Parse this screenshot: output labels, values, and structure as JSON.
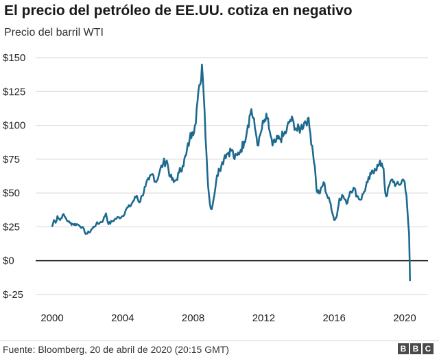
{
  "header": {
    "title": "El precio del petróleo de EE.UU. cotiza en negativo",
    "subtitle": "Precio del barril WTI"
  },
  "footer": {
    "source": "Fuente: Bloomberg, 20 de abril de 2020 (20:15 GMT)",
    "logo": [
      "B",
      "B",
      "C"
    ]
  },
  "colors": {
    "line": "#1d6a8f",
    "grid": "#d6d6d6",
    "zero_line": "#222222"
  },
  "chart_data": {
    "type": "line",
    "title": "El precio del petróleo de EE.UU. cotiza en negativo",
    "subtitle": "Precio del barril WTI",
    "xlabel": "",
    "ylabel": "",
    "xlim": [
      2000,
      2020.6
    ],
    "ylim": [
      -25,
      150
    ],
    "x_ticks": [
      2000,
      2004,
      2008,
      2012,
      2016,
      2020
    ],
    "x_tick_labels": [
      "2000",
      "2004",
      "2008",
      "2012",
      "2016",
      "2020"
    ],
    "y_ticks": [
      -25,
      0,
      25,
      50,
      75,
      100,
      125,
      150
    ],
    "y_tick_labels": [
      "$-25",
      "$0",
      "$25",
      "$50",
      "$75",
      "$100",
      "$125",
      "$150"
    ],
    "grid": true,
    "legend": "none",
    "series": [
      {
        "x": [
          2000.0,
          2000.1,
          2000.2,
          2000.3,
          2000.45,
          2000.6,
          2000.75,
          2000.9,
          2001.0,
          2001.2,
          2001.4,
          2001.55,
          2001.7,
          2001.85,
          2002.0,
          2002.1,
          2002.3,
          2002.5,
          2002.7,
          2002.9,
          2003.05,
          2003.2,
          2003.4,
          2003.6,
          2003.8,
          2004.0,
          2004.2,
          2004.4,
          2004.6,
          2004.8,
          2004.95,
          2005.1,
          2005.3,
          2005.5,
          2005.7,
          2005.9,
          2006.1,
          2006.3,
          2006.5,
          2006.7,
          2006.9,
          2007.05,
          2007.2,
          2007.4,
          2007.6,
          2007.8,
          2007.95,
          2008.1,
          2008.25,
          2008.4,
          2008.5,
          2008.55,
          2008.65,
          2008.75,
          2008.85,
          2008.95,
          2009.05,
          2009.15,
          2009.3,
          2009.45,
          2009.6,
          2009.8,
          2010.0,
          2010.2,
          2010.35,
          2010.5,
          2010.7,
          2010.9,
          2011.1,
          2011.3,
          2011.5,
          2011.7,
          2011.85,
          2012.0,
          2012.2,
          2012.4,
          2012.5,
          2012.7,
          2012.9,
          2013.1,
          2013.3,
          2013.5,
          2013.7,
          2013.9,
          2014.1,
          2014.3,
          2014.5,
          2014.6,
          2014.75,
          2014.9,
          2015.0,
          2015.2,
          2015.4,
          2015.6,
          2015.8,
          2016.0,
          2016.15,
          2016.3,
          2016.5,
          2016.7,
          2016.9,
          2017.1,
          2017.3,
          2017.5,
          2017.7,
          2017.9,
          2018.1,
          2018.3,
          2018.5,
          2018.7,
          2018.8,
          2018.9,
          2019.0,
          2019.1,
          2019.3,
          2019.5,
          2019.7,
          2019.9,
          2020.0,
          2020.1,
          2020.2,
          2020.25,
          2020.28,
          2020.3
        ],
        "y": [
          25,
          30,
          28,
          33,
          30,
          34,
          32,
          29,
          28,
          27,
          27,
          26,
          25,
          21,
          20,
          21,
          24,
          27,
          28,
          30,
          35,
          27,
          29,
          31,
          32,
          33,
          38,
          40,
          44,
          48,
          43,
          48,
          55,
          60,
          64,
          58,
          66,
          72,
          74,
          62,
          58,
          60,
          65,
          70,
          78,
          90,
          95,
          100,
          118,
          130,
          145,
          135,
          110,
          80,
          55,
          42,
          38,
          45,
          58,
          68,
          70,
          78,
          80,
          82,
          75,
          78,
          82,
          88,
          100,
          112,
          98,
          85,
          95,
          102,
          105,
          92,
          85,
          88,
          90,
          92,
          96,
          104,
          102,
          96,
          98,
          102,
          105,
          98,
          85,
          70,
          52,
          50,
          58,
          48,
          42,
          30,
          33,
          46,
          48,
          42,
          51,
          54,
          48,
          45,
          51,
          58,
          64,
          68,
          70,
          72,
          68,
          50,
          48,
          55,
          60,
          56,
          56,
          60,
          58,
          48,
          28,
          20,
          0,
          -15
        ]
      }
    ]
  }
}
